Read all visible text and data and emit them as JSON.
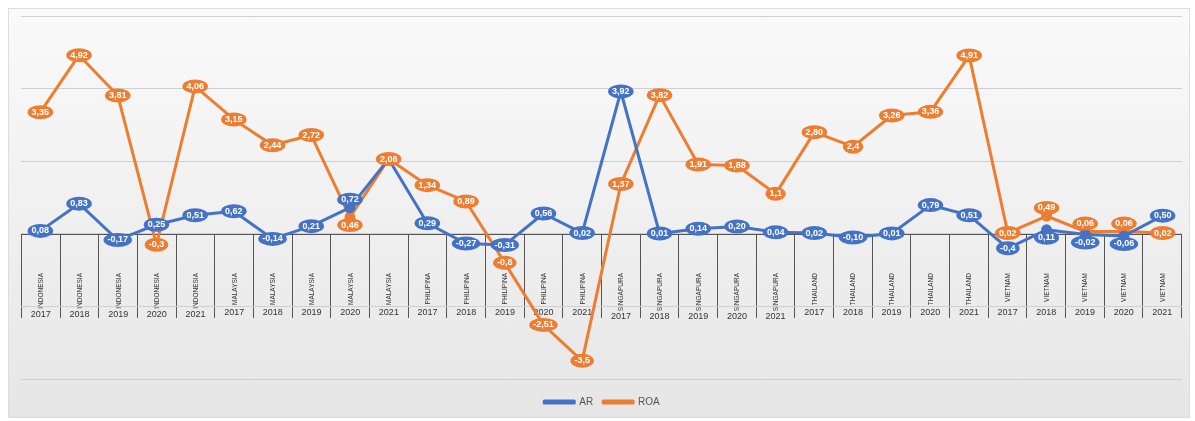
{
  "chart_data": {
    "type": "line",
    "grid": "y",
    "legend": "bottom",
    "marker": "circle",
    "line_style": "solid",
    "ylim": [
      -4,
      6
    ],
    "yticks": [
      {
        "value": -4,
        "label": null
      },
      {
        "value": -2,
        "label": null
      },
      {
        "value": 0,
        "label": null
      },
      {
        "value": 2,
        "label": null
      },
      {
        "value": 4,
        "label": null
      },
      {
        "value": 6,
        "label": null
      }
    ],
    "categories": [
      "INDONESIA 2017",
      "INDONESIA 2018",
      "INDONESIA 2019",
      "INDONESIA 2020",
      "INDONESIA 2021",
      "MALAYSIA 2017",
      "MALAYSIA 2018",
      "MALAYSIA 2019",
      "MALAYSIA 2020",
      "MALAYSIA 2021",
      "PHILIPINA 2017",
      "PHILIPINA 2018",
      "PHILIPINA 2019",
      "PHILIPINA 2020",
      "PHILIPINA 2021",
      "SINGAPURA 2017",
      "SINGAPURA 2018",
      "SINGAPURA 2019",
      "SINGAPURA 2020",
      "SINGAPURA 2021",
      "THAILAND 2017",
      "THAILAND 2018",
      "THAILAND 2019",
      "THAILAND 2020",
      "THAILAND 2021",
      "VIETNAM 2017",
      "VIETNAM 2018",
      "VIETNAM 2019",
      "VIETNAM 2020",
      "VIETNAM 2021"
    ],
    "series": [
      {
        "name": "AR",
        "color": "#4472c4",
        "values": [
          0.08,
          0.83,
          -0.17,
          0.25,
          0.51,
          0.62,
          -0.14,
          0.21,
          0.72,
          2.06,
          0.29,
          -0.27,
          -0.31,
          0.56,
          0.02,
          3.92,
          0.01,
          0.14,
          0.2,
          0.04,
          0.02,
          -0.1,
          0.01,
          0.79,
          0.51,
          -0.4,
          0.11,
          -0.02,
          -0.06,
          0.5
        ],
        "value_labels": [
          "0,08",
          "0,83",
          "-0,17",
          "0,25",
          "0,51",
          "0,62",
          "-0,14",
          "0,21",
          "0,72",
          null,
          "0,29",
          "-0,27",
          "-0,31",
          "0,56",
          "0,02",
          "3,92",
          "0,01",
          "0,14",
          "0,20",
          "0,04",
          "0,02",
          "-0,10",
          "0,01",
          "0,79",
          "0,51",
          "-0,4",
          "0,11",
          "-0,02",
          "-0,06",
          "0,50"
        ]
      },
      {
        "name": "ROA",
        "color": "#ed7d31",
        "values": [
          3.35,
          4.92,
          3.81,
          -0.3,
          4.06,
          3.15,
          2.44,
          2.72,
          0.46,
          2.06,
          1.34,
          0.89,
          -0.8,
          -2.51,
          -3.5,
          1.37,
          3.82,
          1.91,
          1.88,
          1.1,
          2.8,
          2.4,
          3.26,
          3.36,
          4.91,
          0.02,
          0.49,
          0.06,
          0.06,
          0.02
        ],
        "value_labels": [
          "3,35",
          "4,92",
          "3,81",
          "-0,3",
          "4,06",
          "3,15",
          "2,44",
          "2,72",
          "0,46",
          "2,06",
          "1,34",
          "0,89",
          "-0,8",
          "-2,51",
          "-3,5",
          "1,37",
          "3,82",
          "1,91",
          "1,88",
          "1,1",
          "2,80",
          "2,4",
          "3,26",
          "3,36",
          "4,91",
          "0,02",
          "0,49",
          "0,06",
          "0,06",
          "0,02"
        ]
      }
    ]
  }
}
